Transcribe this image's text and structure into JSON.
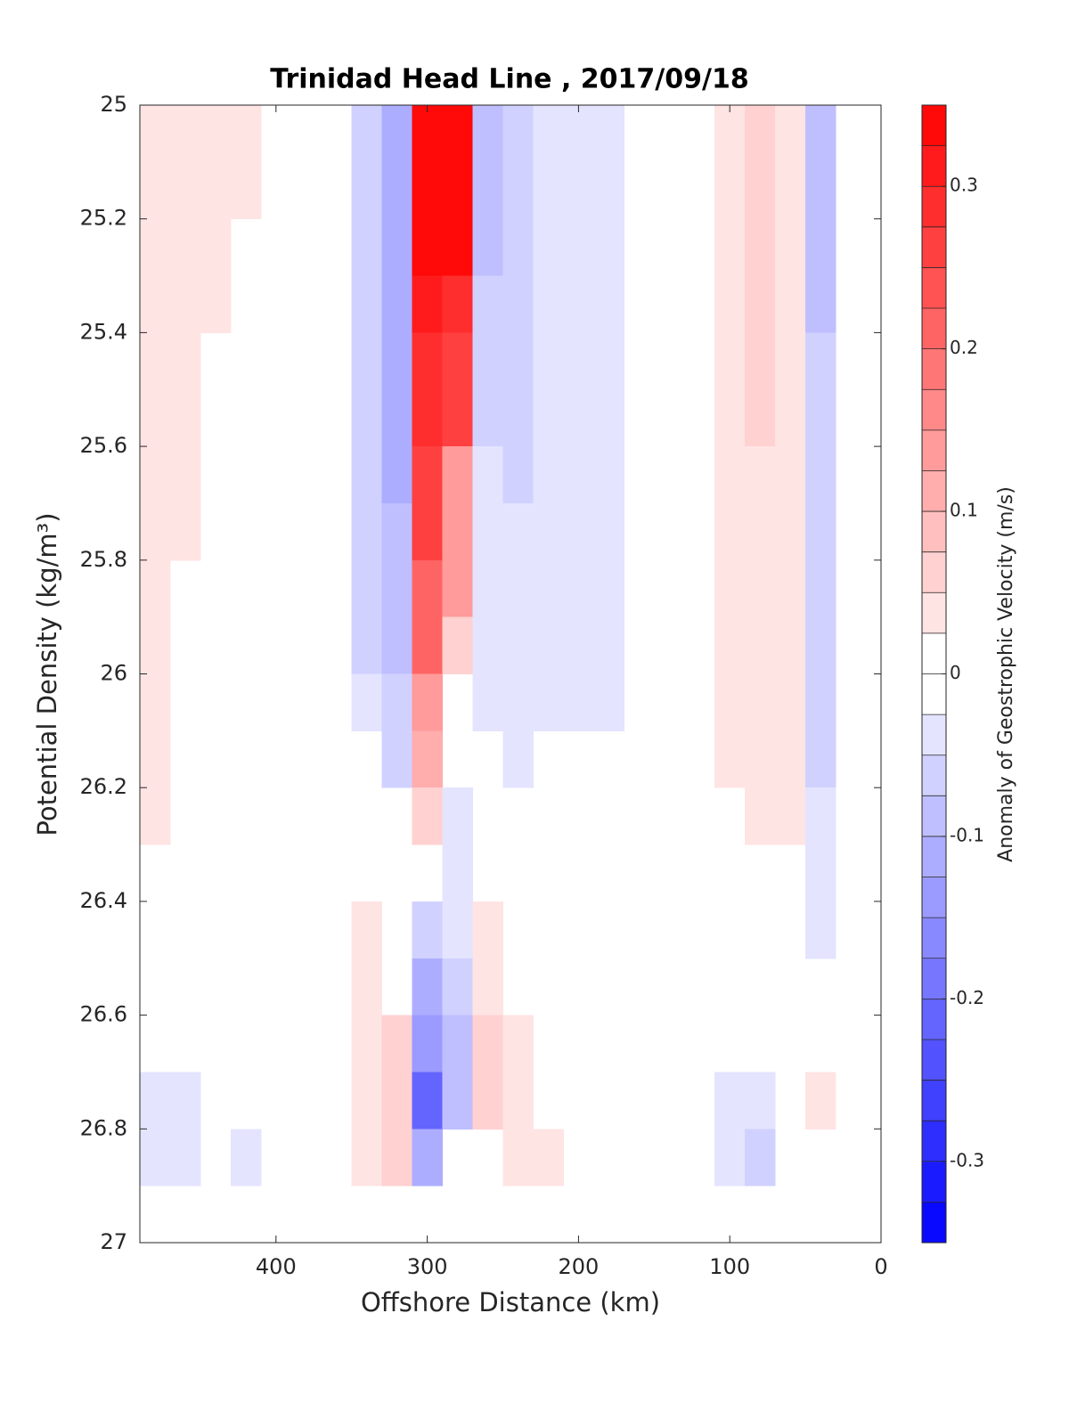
{
  "chart_data": {
    "type": "contourf",
    "title": "Trinidad Head Line , 2017/09/18",
    "xlabel": "Offshore Distance (km)",
    "ylabel": "Potential Density (kg/m³)",
    "colorbar_label": "Anomaly of Geostrophic Velocity (m/s)",
    "xlim": [
      490,
      0
    ],
    "xticks": [
      400,
      300,
      200,
      100,
      0
    ],
    "ylim": [
      25,
      27
    ],
    "yticks": [
      25,
      25.2,
      25.4,
      25.6,
      25.8,
      26,
      26.2,
      26.4,
      26.6,
      26.8,
      27
    ],
    "clim": [
      -0.35,
      0.35
    ],
    "cticks": [
      0.3,
      0.2,
      0.1,
      0,
      -0.1,
      -0.2,
      -0.3
    ],
    "level_step": 0.025,
    "colormap": [
      "#0000ff",
      "#ffffff",
      "#ff0000"
    ],
    "x": [
      480,
      460,
      440,
      420,
      400,
      380,
      360,
      340,
      320,
      300,
      280,
      260,
      240,
      220,
      200,
      180,
      160,
      140,
      120,
      100,
      80,
      60,
      40
    ],
    "y": [
      25.05,
      25.15,
      25.25,
      25.35,
      25.45,
      25.55,
      25.65,
      25.75,
      25.85,
      25.95,
      26.05,
      26.15,
      26.25,
      26.35,
      26.45,
      26.55,
      26.65,
      26.75,
      26.85
    ],
    "z": [
      [
        0.03,
        0.03,
        0.03,
        0.03,
        0,
        0,
        0,
        -0.05,
        -0.1,
        0.33,
        0.33,
        -0.08,
        -0.05,
        -0.03,
        -0.03,
        -0.03,
        0,
        0,
        0,
        0.04,
        0.07,
        0.03,
        -0.08
      ],
      [
        0.03,
        0.03,
        0.03,
        0.03,
        0,
        0,
        0,
        -0.05,
        -0.1,
        0.33,
        0.33,
        -0.08,
        -0.05,
        -0.03,
        -0.03,
        -0.03,
        0,
        0,
        0,
        0.04,
        0.07,
        0.03,
        -0.08
      ],
      [
        0.03,
        0.03,
        0.03,
        0,
        0,
        0,
        0,
        -0.05,
        -0.1,
        0.33,
        0.33,
        -0.08,
        -0.05,
        -0.03,
        -0.03,
        -0.03,
        0,
        0,
        0,
        0.04,
        0.07,
        0.03,
        -0.08
      ],
      [
        0.03,
        0.03,
        0.03,
        0,
        0,
        0,
        0,
        -0.05,
        -0.1,
        0.32,
        0.3,
        -0.06,
        -0.05,
        -0.03,
        -0.03,
        -0.03,
        0,
        0,
        0,
        0.04,
        0.07,
        0.03,
        -0.08
      ],
      [
        0.03,
        0.03,
        0,
        0,
        0,
        0,
        0,
        -0.05,
        -0.1,
        0.3,
        0.25,
        -0.06,
        -0.05,
        -0.03,
        -0.03,
        -0.03,
        0,
        0,
        0,
        0.04,
        0.07,
        0.03,
        -0.05
      ],
      [
        0.03,
        0.03,
        0,
        0,
        0,
        0,
        0,
        -0.05,
        -0.1,
        0.3,
        0.25,
        -0.06,
        -0.05,
        -0.03,
        -0.03,
        -0.03,
        0,
        0,
        0,
        0.04,
        0.07,
        0.03,
        -0.05
      ],
      [
        0.03,
        0.03,
        0,
        0,
        0,
        0,
        0,
        -0.05,
        -0.1,
        0.25,
        0.15,
        -0.03,
        -0.05,
        -0.03,
        -0.03,
        -0.03,
        0,
        0,
        0,
        0.04,
        0.03,
        0.03,
        -0.05
      ],
      [
        0.03,
        0.03,
        0,
        0,
        0,
        0,
        0,
        -0.05,
        -0.08,
        0.25,
        0.15,
        -0.03,
        -0.03,
        -0.03,
        -0.03,
        -0.03,
        0,
        0,
        0,
        0.04,
        0.03,
        0.03,
        -0.05
      ],
      [
        0.03,
        0,
        0,
        0,
        0,
        0,
        0,
        -0.05,
        -0.08,
        0.22,
        0.15,
        -0.03,
        -0.03,
        -0.03,
        -0.03,
        -0.03,
        0,
        0,
        0,
        0.04,
        0.03,
        0.03,
        -0.05
      ],
      [
        0.03,
        0,
        0,
        0,
        0,
        0,
        0,
        -0.05,
        -0.08,
        0.2,
        0.05,
        -0.03,
        -0.03,
        -0.03,
        -0.03,
        -0.03,
        0,
        0,
        0,
        0.04,
        0.03,
        0.03,
        -0.05
      ],
      [
        0.03,
        0,
        0,
        0,
        0,
        0,
        0,
        -0.03,
        -0.05,
        0.15,
        0,
        -0.03,
        -0.03,
        -0.03,
        -0.03,
        -0.03,
        0,
        0,
        0,
        0.04,
        0.03,
        0.03,
        -0.05
      ],
      [
        0.03,
        0,
        0,
        0,
        0,
        0,
        0,
        0,
        -0.05,
        0.1,
        0,
        0,
        -0.03,
        0,
        0,
        0,
        0,
        0,
        0,
        0.04,
        0.03,
        0.03,
        -0.05
      ],
      [
        0.03,
        0,
        0,
        0,
        0,
        0,
        0,
        0,
        0,
        0.05,
        -0.03,
        0,
        0,
        0,
        0,
        0,
        0,
        0,
        0,
        0,
        0.03,
        0.03,
        -0.03
      ],
      [
        0,
        0,
        0,
        0,
        0,
        0,
        0,
        0,
        0,
        0,
        -0.03,
        0,
        0,
        0,
        0,
        0,
        0,
        0,
        0,
        0,
        0,
        0,
        -0.03
      ],
      [
        0,
        0,
        0,
        0,
        0,
        0,
        0,
        0.03,
        0,
        -0.05,
        -0.03,
        0.03,
        0,
        0,
        0,
        0,
        0,
        0,
        0,
        0,
        0,
        0,
        -0.03
      ],
      [
        0,
        0,
        0,
        0,
        0,
        0,
        0,
        0.03,
        0,
        -0.1,
        -0.05,
        0.03,
        0,
        0,
        0,
        0,
        0,
        0,
        0,
        0,
        0,
        0,
        0
      ],
      [
        0,
        0,
        0,
        0,
        0,
        0,
        0,
        0.03,
        0.05,
        -0.15,
        -0.08,
        0.06,
        0.03,
        0,
        0,
        0,
        0,
        0,
        0,
        0,
        0,
        0,
        0
      ],
      [
        -0.03,
        -0.03,
        0,
        0,
        0,
        0,
        0,
        0.03,
        0.06,
        -0.2,
        -0.08,
        0.06,
        0.03,
        0,
        0,
        0,
        0,
        0,
        0,
        -0.03,
        -0.03,
        0,
        0.04
      ],
      [
        -0.03,
        -0.03,
        0,
        -0.03,
        0,
        0,
        0,
        0.03,
        0.06,
        -0.1,
        0,
        0,
        0.03,
        0.03,
        0,
        0,
        0,
        0,
        0,
        -0.03,
        -0.05,
        0,
        0
      ]
    ]
  }
}
